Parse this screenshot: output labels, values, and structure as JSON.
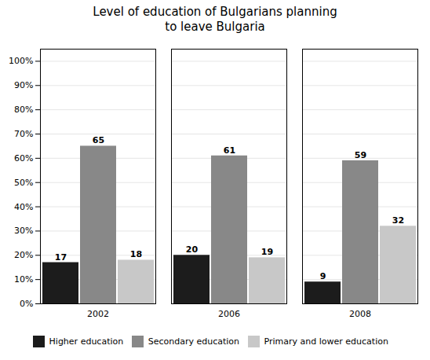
{
  "chart_data": {
    "type": "bar",
    "title": "Level of education of Bulgarians planning\nto leave Bulgaria",
    "categories": [
      "2002",
      "2006",
      "2008"
    ],
    "series": [
      {
        "name": "Higher education",
        "color": "#1c1c1c",
        "values": [
          17,
          20,
          9
        ]
      },
      {
        "name": "Secondary education",
        "color": "#888888",
        "values": [
          65,
          61,
          59
        ]
      },
      {
        "name": "Primary and lower education",
        "color": "#c8c8c8",
        "values": [
          18,
          19,
          32
        ]
      }
    ],
    "ylim": [
      0,
      105
    ],
    "yticks": [
      {
        "value": 0,
        "label": "0%"
      },
      {
        "value": 10,
        "label": "10%"
      },
      {
        "value": 20,
        "label": "20%"
      },
      {
        "value": 30,
        "label": "30%"
      },
      {
        "value": 40,
        "label": "40%"
      },
      {
        "value": 50,
        "label": "50%"
      },
      {
        "value": 60,
        "label": "60%"
      },
      {
        "value": 70,
        "label": "70%"
      },
      {
        "value": 80,
        "label": "80%"
      },
      {
        "value": 90,
        "label": "90%"
      },
      {
        "value": 100,
        "label": "100%"
      }
    ],
    "grid": true,
    "legend": "bottom",
    "data_labels": true
  }
}
